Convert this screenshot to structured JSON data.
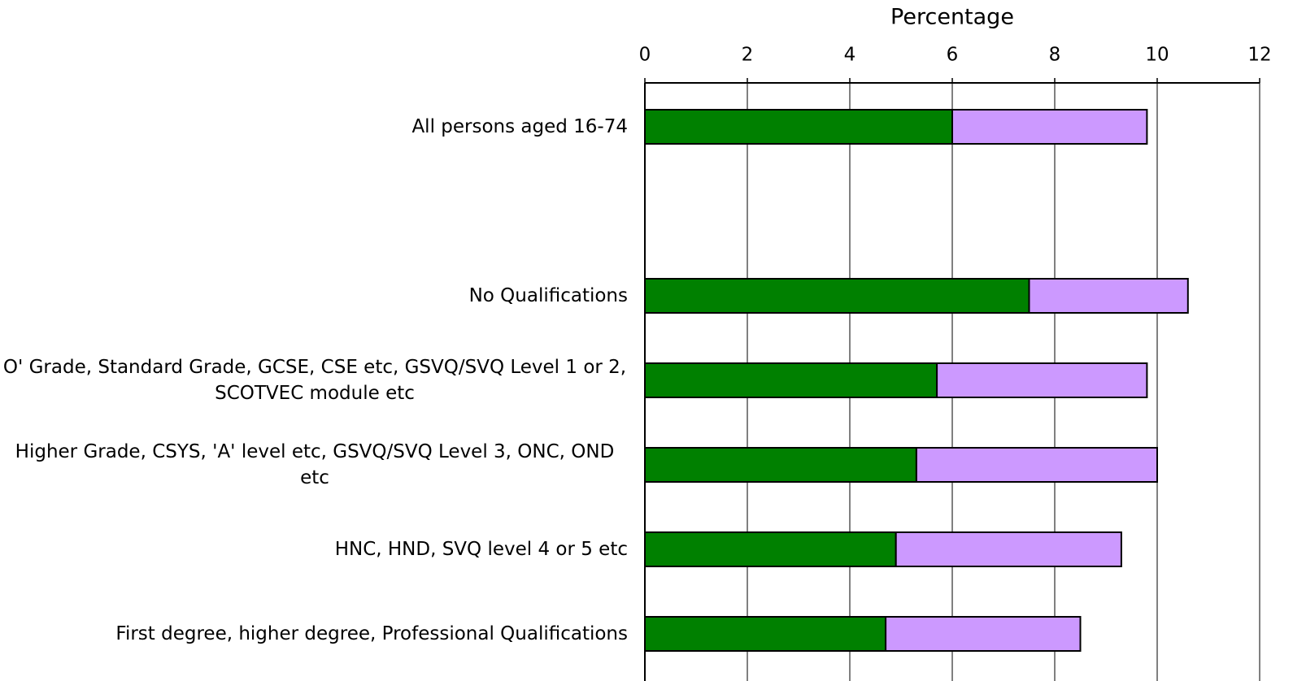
{
  "chart_data": {
    "type": "stacked-barh",
    "title": "Percentage",
    "categories": [
      "All persons aged 16-74",
      null,
      "No Qualifications",
      "O' Grade, Standard Grade, GCSE, CSE etc, GSVQ/SVQ Level 1 or 2, SCOTVEC module etc",
      "Higher Grade, CSYS, 'A' level etc, GSVQ/SVQ Level 3, ONC, OND etc",
      "HNC, HND, SVQ level 4 or 5 etc",
      "First degree, higher degree, Professional Qualifications"
    ],
    "series": [
      {
        "color": "#008000",
        "values": [
          6.0,
          null,
          7.5,
          5.7,
          5.3,
          4.9,
          4.7
        ]
      },
      {
        "color": "#cc99ff",
        "values": [
          3.8,
          null,
          3.1,
          4.1,
          4.7,
          4.4,
          3.8
        ]
      }
    ],
    "xlim": [
      0,
      12
    ],
    "xticks": [
      0,
      2,
      4,
      6,
      8,
      10,
      12
    ],
    "grid": true
  }
}
